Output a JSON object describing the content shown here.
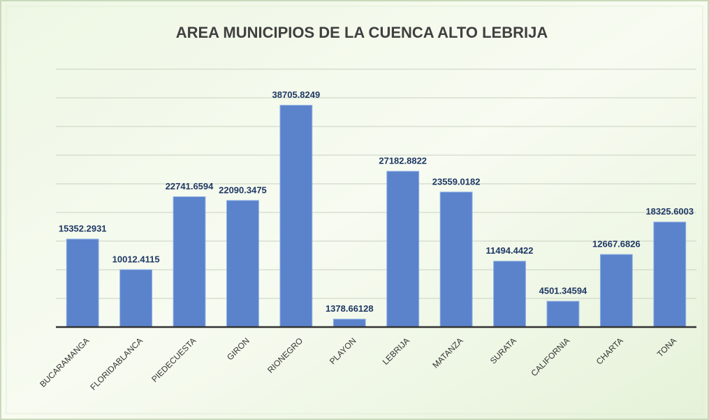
{
  "chart_data": {
    "type": "bar",
    "title": "AREA MUNICIPIOS DE LA CUENCA ALTO LEBRIJA",
    "categories": [
      "BUCARAMANGA",
      "FLORIDABLANCA",
      "PIEDECUESTA",
      "GIRON",
      "RIONEGRO",
      "PLAYON",
      "LEBRIJA",
      "MATANZA",
      "SURATA",
      "CALIFORNIA",
      "CHARTA",
      "TONA"
    ],
    "values": [
      15352.2931,
      10012.4115,
      22741.6594,
      22090.3475,
      38705.8249,
      1378.66128,
      27182.8822,
      23559.0182,
      11494.4422,
      4501.34594,
      12667.6826,
      18325.6003
    ],
    "color": "#5b83cc",
    "ylim": [
      0,
      45000
    ],
    "yticks": [
      0,
      5000,
      10000,
      15000,
      20000,
      25000,
      30000,
      35000,
      40000,
      45000
    ],
    "grid": true
  }
}
